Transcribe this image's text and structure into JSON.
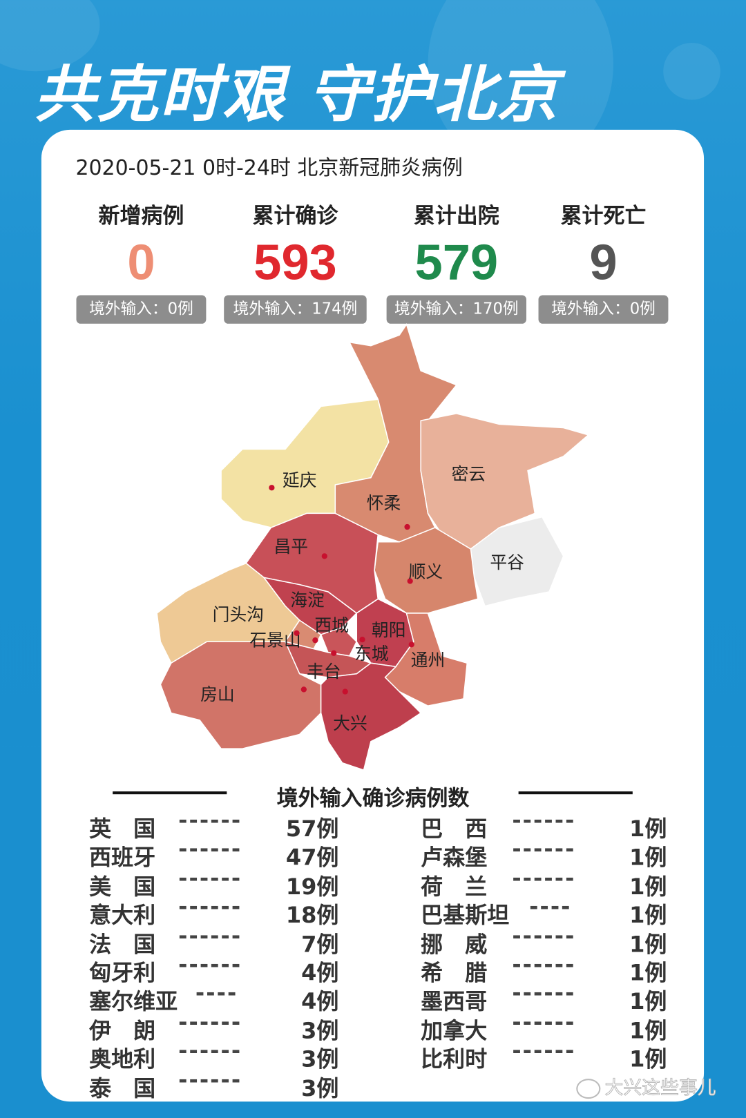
{
  "headline": "共克时艰 守护北京",
  "subtitle": "2020-05-21  0时-24时  北京新冠肺炎病例",
  "stats": [
    {
      "label": "新增病例",
      "value": "0",
      "imported": "境外输入：0例",
      "color": "#ee8e74"
    },
    {
      "label": "累计确诊",
      "value": "593",
      "imported": "境外输入：174例",
      "color": "#e0282e"
    },
    {
      "label": "累计出院",
      "value": "579",
      "imported": "境外输入：170例",
      "color": "#1f8a4c"
    },
    {
      "label": "累计死亡",
      "value": "9",
      "imported": "境外输入：0例",
      "color": "#555555"
    }
  ],
  "map": {
    "districts": [
      "延庆",
      "怀柔",
      "密云",
      "平谷",
      "顺义",
      "昌平",
      "海淀",
      "门头沟",
      "石景山",
      "西城",
      "东城",
      "朝阳",
      "通州",
      "丰台",
      "房山",
      "大兴"
    ]
  },
  "imported_list": {
    "title": "境外输入确诊病例数",
    "left": [
      {
        "country": "英　国",
        "dashes": "------",
        "count": "57例"
      },
      {
        "country": "西班牙",
        "dashes": "------",
        "count": "47例"
      },
      {
        "country": "美　国",
        "dashes": "------",
        "count": "19例"
      },
      {
        "country": "意大利",
        "dashes": "------",
        "count": "18例"
      },
      {
        "country": "法　国",
        "dashes": "------",
        "count": "7例"
      },
      {
        "country": "匈牙利",
        "dashes": "------",
        "count": "4例"
      },
      {
        "country": "塞尔维亚",
        "dashes": "----",
        "count": "4例"
      },
      {
        "country": "伊　朗",
        "dashes": "------",
        "count": "3例"
      },
      {
        "country": "奥地利",
        "dashes": "------",
        "count": "3例"
      },
      {
        "country": "泰　国",
        "dashes": "------",
        "count": "3例"
      }
    ],
    "right": [
      {
        "country": "巴　西",
        "dashes": "------",
        "count": "1例"
      },
      {
        "country": "卢森堡",
        "dashes": "------",
        "count": "1例"
      },
      {
        "country": "荷　兰",
        "dashes": "------",
        "count": "1例"
      },
      {
        "country": "巴基斯坦",
        "dashes": "----",
        "count": "1例"
      },
      {
        "country": "挪　威",
        "dashes": "------",
        "count": "1例"
      },
      {
        "country": "希　腊",
        "dashes": "------",
        "count": "1例"
      },
      {
        "country": "墨西哥",
        "dashes": "------",
        "count": "1例"
      },
      {
        "country": "加拿大",
        "dashes": "------",
        "count": "1例"
      },
      {
        "country": "比利时",
        "dashes": "------",
        "count": "1例"
      }
    ]
  },
  "watermark": "大兴这些事儿"
}
